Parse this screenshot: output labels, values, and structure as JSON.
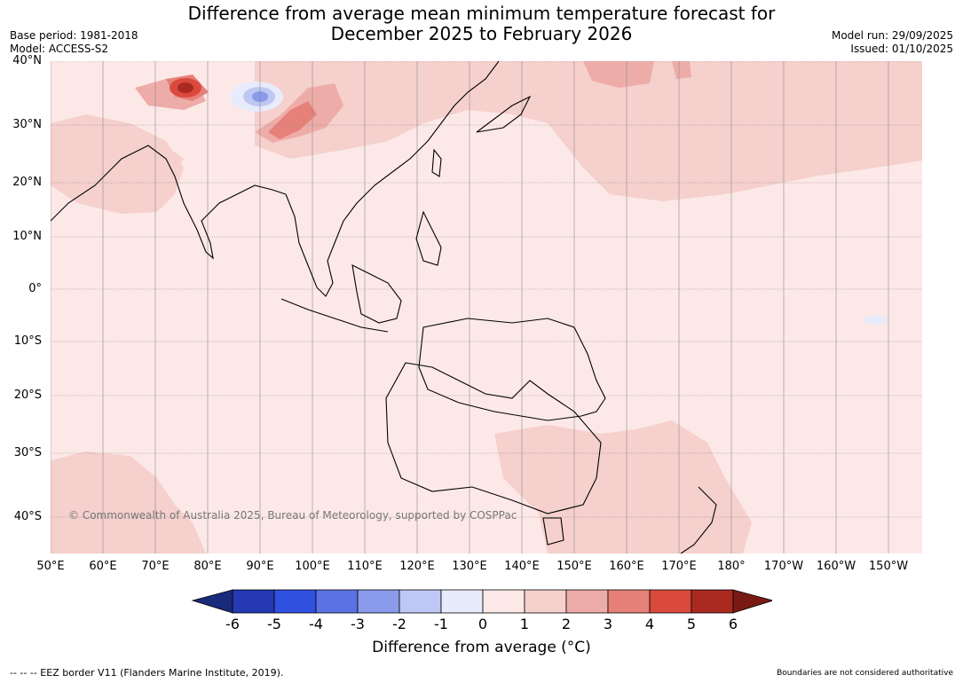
{
  "title": {
    "line1": "Difference from average mean minimum temperature forecast for",
    "line2": "December 2025 to February 2026"
  },
  "meta_left": {
    "base_period": "Base period: 1981-2018",
    "model": "Model: ACCESS-S2"
  },
  "meta_right": {
    "model_run": "Model run: 29/09/2025",
    "issued": "Issued: 01/10/2025"
  },
  "map": {
    "lat_labels": [
      "40°N",
      "30°N",
      "20°N",
      "10°N",
      "0°",
      "10°S",
      "20°S",
      "30°S",
      "40°S"
    ],
    "lon_labels": [
      "50°E",
      "60°E",
      "70°E",
      "80°E",
      "90°E",
      "100°E",
      "110°E",
      "120°E",
      "130°E",
      "140°E",
      "150°E",
      "160°E",
      "170°E",
      "180°",
      "170°W",
      "160°W",
      "150°W"
    ],
    "copyright": "© Commonwealth of Australia 2025, Bureau of Meteorology, supported by COSPPac"
  },
  "colorbar": {
    "ticks": [
      "-6",
      "-5",
      "-4",
      "-3",
      "-2",
      "-1",
      "0",
      "1",
      "2",
      "3",
      "4",
      "5",
      "6"
    ],
    "colors": [
      "#1a2a7a",
      "#2539b3",
      "#3050e0",
      "#5b72e6",
      "#8a9bec",
      "#bfc7f4",
      "#e8ebfb",
      "#fce9e7",
      "#f5d0cd",
      "#eeaca8",
      "#e6817a",
      "#d94a3d",
      "#aa2a22",
      "#7a1a14"
    ],
    "label": "Difference from average (°C)"
  },
  "footer": {
    "left": "--  --  -- EEZ border V11 (Flanders Marine Institute, 2019).",
    "right": "Boundaries are not considered authoritative"
  }
}
